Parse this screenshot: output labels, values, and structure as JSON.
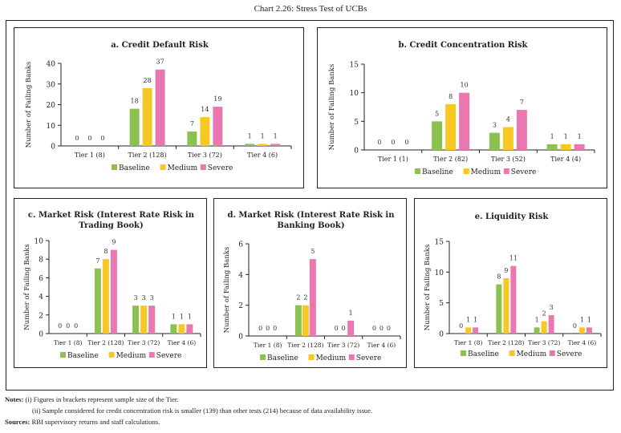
{
  "title": "Chart 2.26: Stress Test of UCBs",
  "colors": {
    "Baseline": "#8cc152",
    "Medium": "#f7c823",
    "Severe": "#ea78b0"
  },
  "chart_data": [
    {
      "id": "a",
      "type": "bar",
      "title": "a. Credit Default Risk",
      "title_lines": [
        "a. Credit Default Risk"
      ],
      "ylabel": "Number of Failing Banks",
      "xlabel": "",
      "categories": [
        "Tier 1 (8)",
        "Tier 2 (128)",
        "Tier 3 (72)",
        "Tier 4 (6)"
      ],
      "ylim": [
        0,
        40
      ],
      "yticks": [
        0,
        10,
        20,
        30,
        40
      ],
      "legend": "bottom",
      "grid": false,
      "series": [
        {
          "name": "Baseline",
          "values": [
            0,
            18,
            7,
            1
          ]
        },
        {
          "name": "Medium",
          "values": [
            0,
            28,
            14,
            1
          ]
        },
        {
          "name": "Severe",
          "values": [
            0,
            37,
            19,
            1
          ]
        }
      ]
    },
    {
      "id": "b",
      "type": "bar",
      "title": "b. Credit Concentration Risk",
      "title_lines": [
        "b. Credit Concentration Risk"
      ],
      "ylabel": "Number of Failing Banks",
      "xlabel": "",
      "categories": [
        "Tier 1 (1)",
        "Tier 2 (82)",
        "Tier 3 (52)",
        "Tier 4 (4)"
      ],
      "ylim": [
        0,
        15
      ],
      "yticks": [
        0,
        5,
        10,
        15
      ],
      "legend": "bottom",
      "grid": false,
      "series": [
        {
          "name": "Baseline",
          "values": [
            0,
            5,
            3,
            1
          ]
        },
        {
          "name": "Medium",
          "values": [
            0,
            8,
            4,
            1
          ]
        },
        {
          "name": "Severe",
          "values": [
            0,
            10,
            7,
            1
          ]
        }
      ]
    },
    {
      "id": "c",
      "type": "bar",
      "title": "c. Market Risk (Interest Rate Risk in Trading Book)",
      "title_lines": [
        "c. Market Risk (Interest Rate Risk in",
        "Trading Book)"
      ],
      "ylabel": "Number of Failing Banks",
      "xlabel": "",
      "categories": [
        "Tier 1 (8)",
        "Tier 2 (128)",
        "Tier 3 (72)",
        "Tier 4 (6)"
      ],
      "ylim": [
        0,
        10
      ],
      "yticks": [
        0,
        2,
        4,
        6,
        8,
        10
      ],
      "legend": "bottom",
      "grid": false,
      "series": [
        {
          "name": "Baseline",
          "values": [
            0,
            7,
            3,
            1
          ]
        },
        {
          "name": "Medium",
          "values": [
            0,
            8,
            3,
            1
          ]
        },
        {
          "name": "Severe",
          "values": [
            0,
            9,
            3,
            1
          ]
        }
      ]
    },
    {
      "id": "d",
      "type": "bar",
      "title": "d. Market Risk (Interest Rate Risk in Banking Book)",
      "title_lines": [
        "d. Market Risk (Interest Rate Risk in",
        "Banking Book)"
      ],
      "ylabel": "Number of Failing Banks",
      "xlabel": "",
      "categories": [
        "Tier 1 (8)",
        "Tier 2 (128)",
        "Tier 3 (72)",
        "Tier 4 (6)"
      ],
      "ylim": [
        0,
        6
      ],
      "yticks": [
        0,
        2,
        4,
        6
      ],
      "legend": "bottom",
      "grid": false,
      "series": [
        {
          "name": "Baseline",
          "values": [
            0,
            2,
            0,
            0
          ]
        },
        {
          "name": "Medium",
          "values": [
            0,
            2,
            0,
            0
          ]
        },
        {
          "name": "Severe",
          "values": [
            0,
            5,
            1,
            0
          ]
        }
      ]
    },
    {
      "id": "e",
      "type": "bar",
      "title": "e. Liquidity Risk",
      "title_lines": [
        "e. Liquidity Risk"
      ],
      "ylabel": "Number of Failing Banks",
      "xlabel": "",
      "categories": [
        "Tier 1 (8)",
        "Tier 2 (128)",
        "Tier 3 (72)",
        "Tier 4 (6)"
      ],
      "ylim": [
        0,
        15
      ],
      "yticks": [
        0,
        5,
        10,
        15
      ],
      "legend": "bottom",
      "grid": false,
      "series": [
        {
          "name": "Baseline",
          "values": [
            0,
            8,
            1,
            0
          ]
        },
        {
          "name": "Medium",
          "values": [
            1,
            9,
            2,
            1
          ]
        },
        {
          "name": "Severe",
          "values": [
            1,
            11,
            3,
            1
          ]
        }
      ]
    }
  ],
  "notes": {
    "label": "Notes:",
    "items": [
      "(i)  Figures in brackets represent sample size of the Tier.",
      "(ii) Sample considered for credit concentration risk is smaller (139) than other tests (214) because of data availability issue."
    ],
    "sources_label": "Sources:",
    "sources": "RBI supervisory returns and staff calculations."
  }
}
